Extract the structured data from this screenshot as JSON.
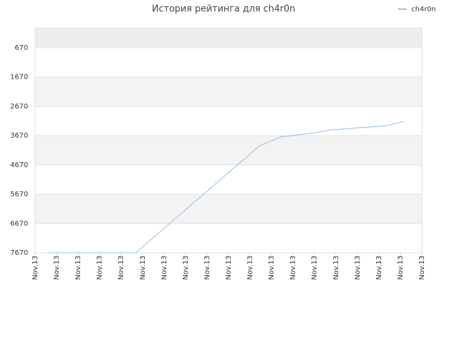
{
  "chart_data": {
    "type": "line",
    "title": "История рейтинга для ch4r0n",
    "x": [
      0.65,
      4.68,
      10.47,
      11.45,
      12.27,
      13.09,
      13.74,
      14.23,
      15.05,
      16.03,
      16.36,
      17.18
    ],
    "series": [
      {
        "name": "ch4r0n",
        "color": "#8ec0ee",
        "values": [
          7670,
          7670,
          4003,
          3715,
          3643,
          3571,
          3475,
          3451,
          3403,
          3356,
          3332,
          3188
        ]
      }
    ],
    "xlim": [
      0,
      18
    ],
    "xticks": [
      {
        "value": 0,
        "label": "Nov.13"
      },
      {
        "value": 1,
        "label": "Nov.13"
      },
      {
        "value": 2,
        "label": "Nov.13"
      },
      {
        "value": 3,
        "label": "Nov.13"
      },
      {
        "value": 4,
        "label": "Nov.13"
      },
      {
        "value": 5,
        "label": "Nov.13"
      },
      {
        "value": 6,
        "label": "Nov.13"
      },
      {
        "value": 7,
        "label": "Nov.13"
      },
      {
        "value": 8,
        "label": "Nov.13"
      },
      {
        "value": 9,
        "label": "Nov.13"
      },
      {
        "value": 10,
        "label": "Nov.13"
      },
      {
        "value": 11,
        "label": "Nov.13"
      },
      {
        "value": 12,
        "label": "Nov.13"
      },
      {
        "value": 13,
        "label": "Nov.13"
      },
      {
        "value": 14,
        "label": "Nov.13"
      },
      {
        "value": 15,
        "label": "Nov.13"
      },
      {
        "value": 16,
        "label": "Nov.13"
      },
      {
        "value": 17,
        "label": "Nov.13"
      },
      {
        "value": 18,
        "label": "Nov.13"
      }
    ],
    "ylim": [
      7670,
      0
    ],
    "yticks": [
      670,
      1670,
      2670,
      3670,
      4670,
      5670,
      6670,
      7670
    ],
    "grid": true,
    "legend": "top-right"
  }
}
